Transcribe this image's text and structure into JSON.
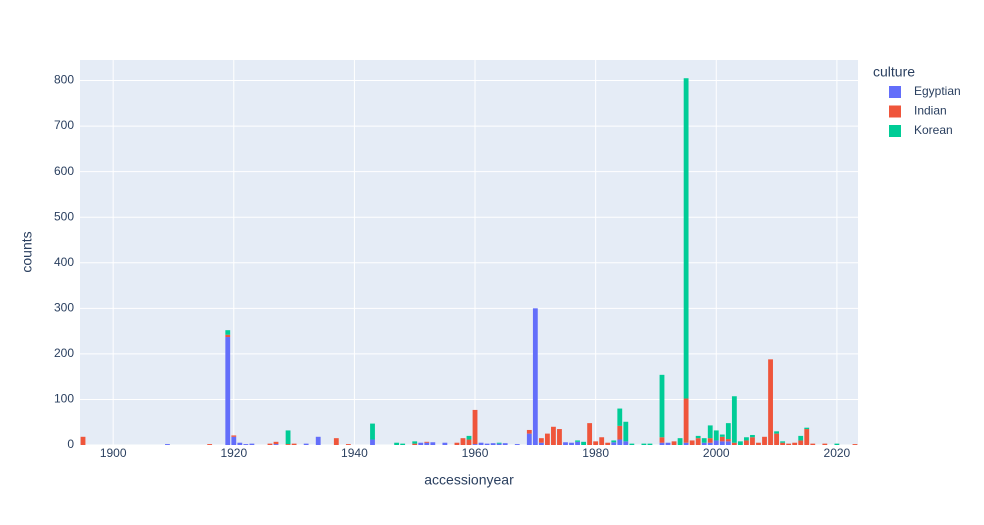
{
  "chart_data": {
    "type": "bar",
    "barmode": "stack",
    "x_title": "accessionyear",
    "y_title": "counts",
    "legend_title": "culture",
    "legend_position": "right",
    "x": [
      1895,
      1909,
      1916,
      1919,
      1920,
      1921,
      1922,
      1923,
      1926,
      1927,
      1929,
      1930,
      1932,
      1934,
      1937,
      1939,
      1943,
      1947,
      1948,
      1950,
      1951,
      1952,
      1953,
      1955,
      1957,
      1958,
      1959,
      1960,
      1961,
      1962,
      1963,
      1964,
      1965,
      1967,
      1969,
      1970,
      1971,
      1972,
      1973,
      1974,
      1975,
      1976,
      1977,
      1978,
      1979,
      1980,
      1981,
      1982,
      1983,
      1984,
      1985,
      1986,
      1988,
      1989,
      1991,
      1992,
      1993,
      1994,
      1995,
      1996,
      1997,
      1998,
      1999,
      2000,
      2001,
      2002,
      2003,
      2004,
      2005,
      2006,
      2007,
      2008,
      2009,
      2010,
      2011,
      2012,
      2013,
      2014,
      2015,
      2016,
      2018,
      2020,
      2023
    ],
    "series": [
      {
        "name": "Egyptian",
        "color": "#636efa",
        "values": [
          0,
          2,
          0,
          237,
          18,
          5,
          2,
          3,
          0,
          2,
          0,
          0,
          3,
          18,
          0,
          0,
          12,
          0,
          0,
          0,
          5,
          5,
          6,
          5,
          0,
          0,
          0,
          2,
          5,
          3,
          4,
          3,
          4,
          2,
          25,
          300,
          5,
          0,
          0,
          0,
          6,
          5,
          7,
          0,
          0,
          0,
          0,
          0,
          6,
          12,
          8,
          0,
          0,
          0,
          5,
          5,
          0,
          0,
          5,
          0,
          0,
          5,
          5,
          10,
          8,
          8,
          0,
          0,
          0,
          0,
          0,
          0,
          0,
          0,
          0,
          0,
          0,
          0,
          0,
          0,
          0,
          0,
          0
        ]
      },
      {
        "name": "Indian",
        "color": "#EF553B",
        "values": [
          18,
          0,
          2,
          5,
          3,
          0,
          0,
          0,
          3,
          5,
          2,
          3,
          0,
          0,
          15,
          2,
          0,
          0,
          0,
          3,
          0,
          2,
          0,
          0,
          5,
          15,
          12,
          75,
          0,
          0,
          0,
          0,
          0,
          0,
          8,
          0,
          10,
          25,
          40,
          35,
          0,
          0,
          0,
          0,
          48,
          8,
          17,
          5,
          0,
          30,
          0,
          0,
          0,
          0,
          12,
          0,
          8,
          0,
          97,
          10,
          15,
          0,
          10,
          0,
          10,
          5,
          5,
          0,
          10,
          17,
          5,
          18,
          188,
          25,
          5,
          3,
          5,
          10,
          35,
          3,
          3,
          0,
          2
        ]
      },
      {
        "name": "Korean",
        "color": "#00cc96",
        "values": [
          0,
          0,
          0,
          10,
          0,
          0,
          0,
          0,
          0,
          0,
          30,
          0,
          0,
          0,
          0,
          0,
          35,
          5,
          3,
          5,
          0,
          0,
          0,
          0,
          0,
          0,
          8,
          0,
          0,
          0,
          0,
          2,
          0,
          0,
          0,
          0,
          0,
          0,
          0,
          0,
          0,
          0,
          3,
          7,
          0,
          0,
          0,
          0,
          4,
          38,
          43,
          3,
          3,
          3,
          137,
          0,
          0,
          15,
          703,
          0,
          5,
          10,
          28,
          22,
          5,
          35,
          102,
          8,
          7,
          5,
          0,
          0,
          0,
          5,
          3,
          0,
          0,
          10,
          3,
          0,
          0,
          3,
          0
        ]
      }
    ],
    "xlim": [
      1894.5,
      2023.5
    ],
    "xticks": [
      1900,
      1920,
      1940,
      1960,
      1980,
      2000,
      2020
    ],
    "ylim": [
      0,
      845
    ],
    "yticks": [
      0,
      100,
      200,
      300,
      400,
      500,
      600,
      700,
      800
    ],
    "grid": true,
    "background": "#E5ECF6"
  }
}
